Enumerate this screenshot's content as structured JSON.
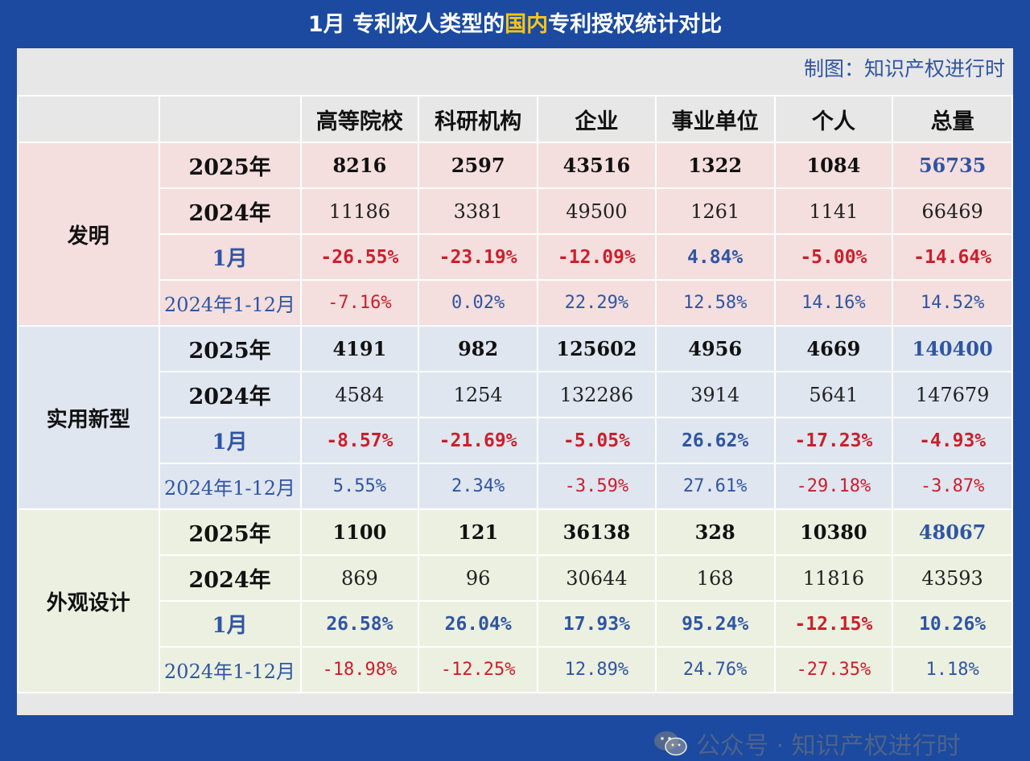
{
  "title": {
    "prefix": "1月  专利权人类型的",
    "highlight": "国内",
    "suffix": "专利授权统计对比"
  },
  "credit": "制图：知识产权进行时",
  "watermark": "公众号 · 知识产权进行时",
  "colors": {
    "negative": "#cc1f2b",
    "positive": "#2f55a4",
    "background": "#1b4aa0"
  },
  "chart_data": {
    "type": "table",
    "title": "1月  专利权人类型的国内专利授权统计对比",
    "columns": [
      "高等院校",
      "科研机构",
      "企业",
      "事业单位",
      "个人",
      "总量"
    ],
    "sections": [
      {
        "category": "发明",
        "rows": [
          {
            "label": "2025年",
            "values": [
              "8216",
              "2597",
              "43516",
              "1322",
              "1084",
              "56735"
            ]
          },
          {
            "label": "2024年",
            "values": [
              "11186",
              "3381",
              "49500",
              "1261",
              "1141",
              "66469"
            ]
          },
          {
            "label": "1月",
            "values": [
              "-26.55%",
              "-23.19%",
              "-12.09%",
              "4.84%",
              "-5.00%",
              "-14.64%"
            ]
          },
          {
            "label": "2024年1-12月",
            "values": [
              "-7.16%",
              "0.02%",
              "22.29%",
              "12.58%",
              "14.16%",
              "14.52%"
            ]
          }
        ]
      },
      {
        "category": "实用新型",
        "rows": [
          {
            "label": "2025年",
            "values": [
              "4191",
              "982",
              "125602",
              "4956",
              "4669",
              "140400"
            ]
          },
          {
            "label": "2024年",
            "values": [
              "4584",
              "1254",
              "132286",
              "3914",
              "5641",
              "147679"
            ]
          },
          {
            "label": "1月",
            "values": [
              "-8.57%",
              "-21.69%",
              "-5.05%",
              "26.62%",
              "-17.23%",
              "-4.93%"
            ]
          },
          {
            "label": "2024年1-12月",
            "values": [
              "5.55%",
              "2.34%",
              "-3.59%",
              "27.61%",
              "-29.18%",
              "-3.87%"
            ]
          }
        ]
      },
      {
        "category": "外观设计",
        "rows": [
          {
            "label": "2025年",
            "values": [
              "1100",
              "121",
              "36138",
              "328",
              "10380",
              "48067"
            ]
          },
          {
            "label": "2024年",
            "values": [
              "869",
              "96",
              "30644",
              "168",
              "11816",
              "43593"
            ]
          },
          {
            "label": "1月",
            "values": [
              "26.58%",
              "26.04%",
              "17.93%",
              "95.24%",
              "-12.15%",
              "10.26%"
            ]
          },
          {
            "label": "2024年1-12月",
            "values": [
              "-18.98%",
              "-12.25%",
              "12.89%",
              "24.76%",
              "-27.35%",
              "1.18%"
            ]
          }
        ]
      }
    ]
  }
}
